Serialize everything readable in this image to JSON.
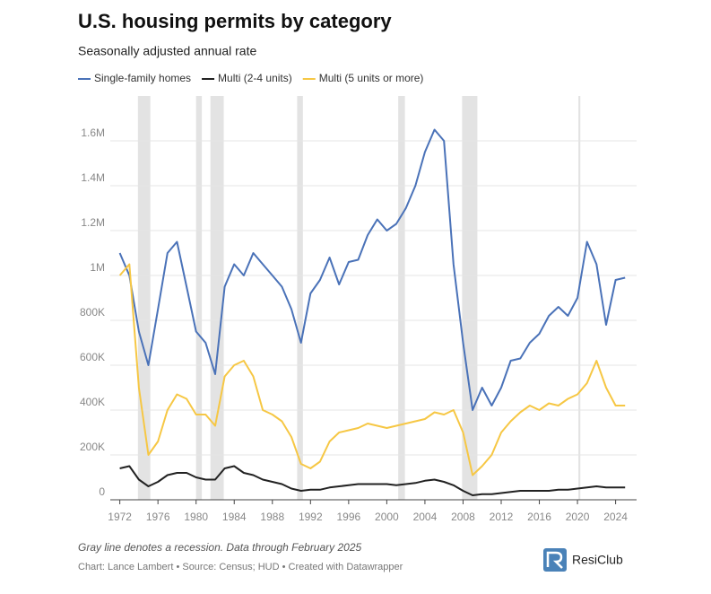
{
  "chart_data": {
    "type": "line",
    "title": "U.S. housing permits by category",
    "subtitle": "Seasonally adjusted annual rate",
    "note": "Gray line denotes a recession. Data through February 2025",
    "credit": "Chart: Lance Lambert • Source: Census; HUD • Created with Datawrapper",
    "brand": "ResiClub",
    "x": [
      1972,
      1973,
      1974,
      1975,
      1976,
      1977,
      1978,
      1979,
      1980,
      1981,
      1982,
      1983,
      1984,
      1985,
      1986,
      1987,
      1988,
      1989,
      1990,
      1991,
      1992,
      1993,
      1994,
      1995,
      1996,
      1997,
      1998,
      1999,
      2000,
      2001,
      2002,
      2003,
      2004,
      2005,
      2006,
      2007,
      2008,
      2009,
      2010,
      2011,
      2012,
      2013,
      2014,
      2015,
      2016,
      2017,
      2018,
      2019,
      2020,
      2021,
      2022,
      2023,
      2024,
      2025
    ],
    "series": [
      {
        "name": "Single-family homes",
        "color": "#4a72b8",
        "values": [
          1100000,
          1000000,
          750000,
          600000,
          850000,
          1100000,
          1150000,
          950000,
          750000,
          700000,
          560000,
          950000,
          1050000,
          1000000,
          1100000,
          1050000,
          1000000,
          950000,
          850000,
          700000,
          920000,
          980000,
          1080000,
          960000,
          1060000,
          1070000,
          1180000,
          1250000,
          1200000,
          1230000,
          1300000,
          1400000,
          1550000,
          1650000,
          1600000,
          1050000,
          700000,
          400000,
          500000,
          420000,
          500000,
          620000,
          630000,
          700000,
          740000,
          820000,
          860000,
          820000,
          900000,
          1150000,
          1050000,
          780000,
          980000,
          990000
        ]
      },
      {
        "name": "Multi (2-4 units)",
        "color": "#222222",
        "values": [
          140000,
          150000,
          90000,
          60000,
          80000,
          110000,
          120000,
          120000,
          100000,
          90000,
          90000,
          140000,
          150000,
          120000,
          110000,
          90000,
          80000,
          70000,
          50000,
          40000,
          45000,
          45000,
          55000,
          60000,
          65000,
          70000,
          70000,
          70000,
          70000,
          65000,
          70000,
          75000,
          85000,
          90000,
          80000,
          65000,
          40000,
          20000,
          25000,
          25000,
          30000,
          35000,
          40000,
          40000,
          40000,
          40000,
          45000,
          45000,
          50000,
          55000,
          60000,
          55000,
          55000,
          55000
        ]
      },
      {
        "name": "Multi (5 units or more)",
        "color": "#f6c744",
        "values": [
          1000000,
          1050000,
          500000,
          200000,
          260000,
          400000,
          470000,
          450000,
          380000,
          380000,
          330000,
          550000,
          600000,
          620000,
          550000,
          400000,
          380000,
          350000,
          280000,
          160000,
          140000,
          170000,
          260000,
          300000,
          310000,
          320000,
          340000,
          330000,
          320000,
          330000,
          340000,
          350000,
          360000,
          390000,
          380000,
          400000,
          300000,
          110000,
          150000,
          200000,
          300000,
          350000,
          390000,
          420000,
          400000,
          430000,
          420000,
          450000,
          470000,
          520000,
          620000,
          500000,
          420000,
          420000
        ]
      }
    ],
    "recessions": [
      [
        1973.9,
        1975.2
      ],
      [
        1980.0,
        1980.6
      ],
      [
        1981.5,
        1982.9
      ],
      [
        1990.6,
        1991.2
      ],
      [
        2001.2,
        2001.9
      ],
      [
        2007.9,
        2009.5
      ],
      [
        2020.1,
        2020.3
      ]
    ],
    "xlim": [
      1971,
      2026.2
    ],
    "xticks": [
      1972,
      1976,
      1980,
      1984,
      1988,
      1992,
      1996,
      2000,
      2004,
      2008,
      2012,
      2016,
      2020,
      2024
    ],
    "ylim": [
      0,
      1800000
    ],
    "yticks": [
      0,
      {
        "value": 200000,
        "label": "200K"
      },
      {
        "value": 400000,
        "label": "400K"
      },
      {
        "value": 600000,
        "label": "600K"
      },
      {
        "value": 800000,
        "label": "800K"
      },
      {
        "value": 1000000,
        "label": "1M"
      },
      {
        "value": 1200000,
        "label": "1.2M"
      },
      {
        "value": 1400000,
        "label": "1.4M"
      },
      {
        "value": 1600000,
        "label": "1.6M"
      }
    ],
    "grid": true
  }
}
